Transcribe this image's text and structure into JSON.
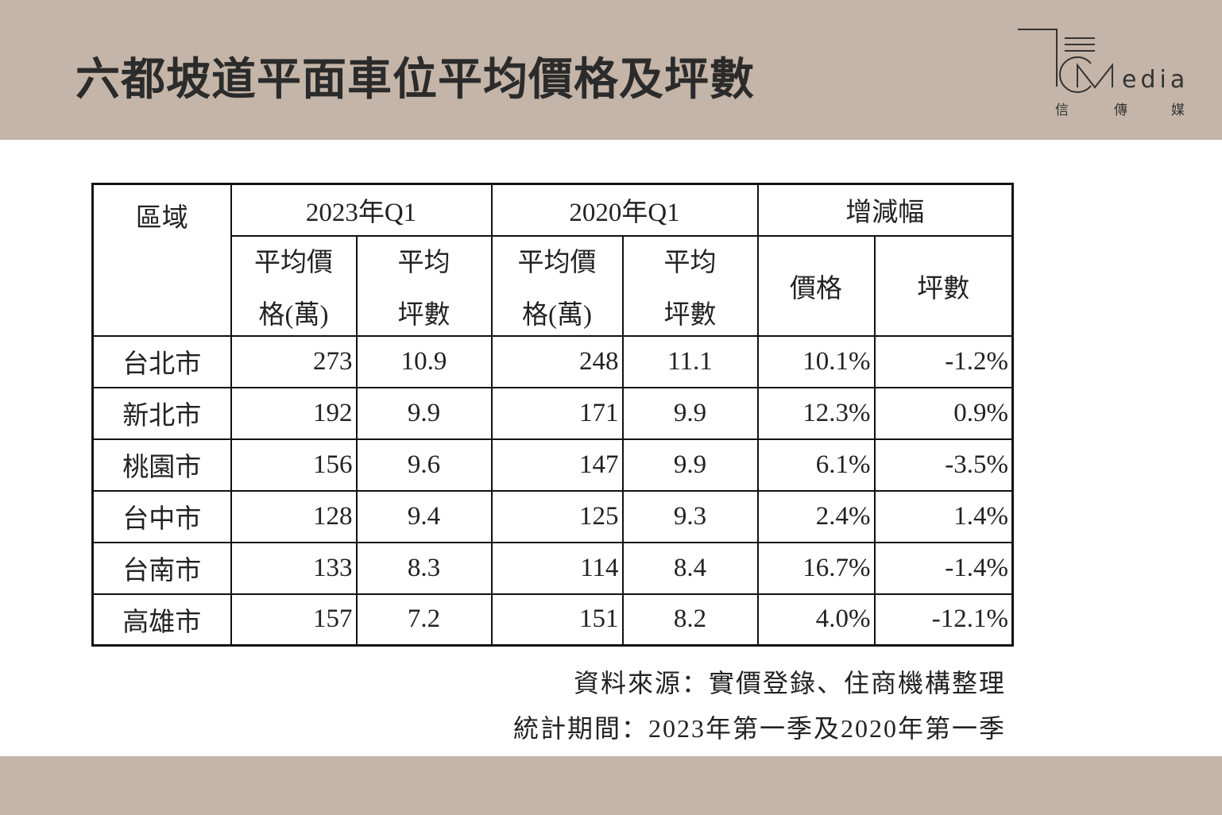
{
  "title": "六都坡道平面車位平均價格及坪數",
  "logo": {
    "text": "CMedia",
    "sub": [
      "信",
      "傳",
      "媒"
    ]
  },
  "table": {
    "region_header": "區域",
    "group_headers": [
      "2023年Q1",
      "2020年Q1",
      "增減幅"
    ],
    "sub_headers": [
      [
        "平均價",
        "格(萬)"
      ],
      [
        "平均",
        "坪數"
      ],
      [
        "平均價",
        "格(萬)"
      ],
      [
        "平均",
        "坪數"
      ],
      [
        "價格"
      ],
      [
        "坪數"
      ]
    ],
    "rows": [
      {
        "region": "台北市",
        "price_2023": "273",
        "ping_2023": "10.9",
        "price_2020": "248",
        "ping_2020": "11.1",
        "price_change": "10.1%",
        "ping_change": "-1.2%"
      },
      {
        "region": "新北市",
        "price_2023": "192",
        "ping_2023": "9.9",
        "price_2020": "171",
        "ping_2020": "9.9",
        "price_change": "12.3%",
        "ping_change": "0.9%"
      },
      {
        "region": "桃園市",
        "price_2023": "156",
        "ping_2023": "9.6",
        "price_2020": "147",
        "ping_2020": "9.9",
        "price_change": "6.1%",
        "ping_change": "-3.5%"
      },
      {
        "region": "台中市",
        "price_2023": "128",
        "ping_2023": "9.4",
        "price_2020": "125",
        "ping_2020": "9.3",
        "price_change": "2.4%",
        "ping_change": "1.4%"
      },
      {
        "region": "台南市",
        "price_2023": "133",
        "ping_2023": "8.3",
        "price_2020": "114",
        "ping_2020": "8.4",
        "price_change": "16.7%",
        "ping_change": "-1.4%"
      },
      {
        "region": "高雄市",
        "price_2023": "157",
        "ping_2023": "7.2",
        "price_2020": "151",
        "ping_2020": "8.2",
        "price_change": "4.0%",
        "ping_change": "-12.1%"
      }
    ]
  },
  "notes": {
    "source": "資料來源：實價登錄、住商機構整理",
    "period": "統計期間：2023年第一季及2020年第一季"
  },
  "colors": {
    "band": "#c4b5a8",
    "text": "#222222"
  }
}
